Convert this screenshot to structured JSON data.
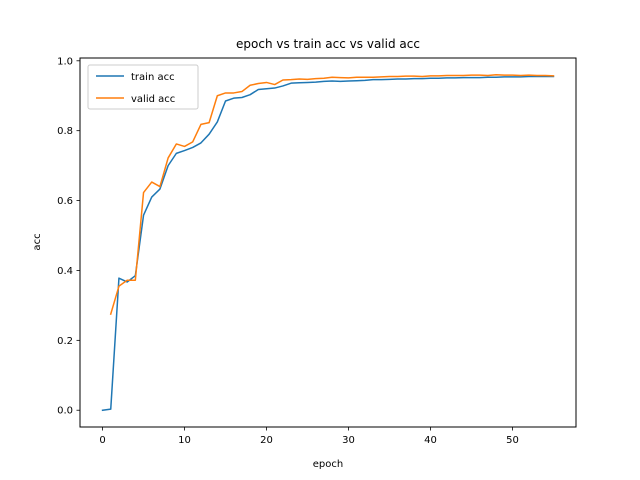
{
  "chart_data": {
    "type": "line",
    "title": "epoch vs train acc vs valid acc",
    "xlabel": "epoch",
    "ylabel": "acc",
    "xlim": [
      -2.75,
      57.75
    ],
    "ylim": [
      -0.048,
      1.008
    ],
    "xticks": [
      0,
      10,
      20,
      30,
      40,
      50
    ],
    "yticks": [
      0.0,
      0.2,
      0.4,
      0.6,
      0.8,
      1.0
    ],
    "xtick_labels": [
      "0",
      "10",
      "20",
      "30",
      "40",
      "50"
    ],
    "ytick_labels": [
      "0.0",
      "0.2",
      "0.4",
      "0.6",
      "0.8",
      "1.0"
    ],
    "grid": false,
    "legend_position": "upper-left",
    "series": [
      {
        "name": "train acc",
        "color": "#1f77b4",
        "x": [
          0,
          1,
          2,
          3,
          4,
          5,
          6,
          7,
          8,
          9,
          10,
          11,
          12,
          13,
          14,
          15,
          16,
          17,
          18,
          19,
          20,
          21,
          22,
          23,
          24,
          25,
          26,
          27,
          28,
          29,
          30,
          31,
          32,
          33,
          34,
          35,
          36,
          37,
          38,
          39,
          40,
          41,
          42,
          43,
          44,
          45,
          46,
          47,
          48,
          49,
          50,
          51,
          52,
          53,
          54,
          55
        ],
        "y": [
          0.0,
          0.003,
          0.378,
          0.367,
          0.385,
          0.558,
          0.61,
          0.633,
          0.7,
          0.735,
          0.743,
          0.752,
          0.765,
          0.79,
          0.825,
          0.885,
          0.893,
          0.895,
          0.903,
          0.918,
          0.92,
          0.922,
          0.928,
          0.936,
          0.937,
          0.938,
          0.939,
          0.941,
          0.942,
          0.941,
          0.942,
          0.943,
          0.944,
          0.946,
          0.946,
          0.947,
          0.948,
          0.948,
          0.949,
          0.949,
          0.95,
          0.95,
          0.951,
          0.951,
          0.952,
          0.952,
          0.952,
          0.953,
          0.953,
          0.954,
          0.954,
          0.954,
          0.955,
          0.955,
          0.955,
          0.955
        ]
      },
      {
        "name": "valid acc",
        "color": "#ff7f0e",
        "x": [
          1,
          2,
          3,
          4,
          5,
          6,
          7,
          8,
          9,
          10,
          11,
          12,
          13,
          14,
          15,
          16,
          17,
          18,
          19,
          20,
          21,
          22,
          23,
          24,
          25,
          26,
          27,
          28,
          29,
          30,
          31,
          32,
          33,
          34,
          35,
          36,
          37,
          38,
          39,
          40,
          41,
          42,
          43,
          44,
          45,
          46,
          47,
          48,
          49,
          50,
          51,
          52,
          53,
          54,
          55
        ],
        "y": [
          0.275,
          0.355,
          0.372,
          0.372,
          0.623,
          0.653,
          0.64,
          0.722,
          0.762,
          0.755,
          0.768,
          0.818,
          0.823,
          0.9,
          0.908,
          0.908,
          0.912,
          0.93,
          0.935,
          0.938,
          0.932,
          0.945,
          0.946,
          0.948,
          0.947,
          0.949,
          0.95,
          0.953,
          0.952,
          0.951,
          0.953,
          0.953,
          0.953,
          0.954,
          0.955,
          0.955,
          0.956,
          0.956,
          0.955,
          0.957,
          0.957,
          0.958,
          0.958,
          0.958,
          0.959,
          0.959,
          0.958,
          0.96,
          0.959,
          0.959,
          0.958,
          0.959,
          0.958,
          0.958,
          0.957
        ]
      }
    ]
  }
}
